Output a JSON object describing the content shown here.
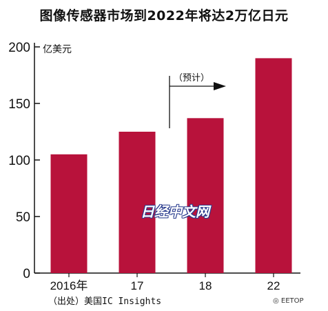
{
  "title": "图像传感器市场到2022年将达2万亿日元",
  "source": "（出处）美国IC Insights",
  "watermark": "日经中文网",
  "wechat_label": "EETOP",
  "colors": {
    "bar": "#b8123b",
    "axis": "#111111",
    "text": "#111111"
  },
  "chart_data": {
    "type": "bar",
    "categories": [
      "2016年",
      "17",
      "18",
      "22"
    ],
    "values": [
      105,
      125,
      137,
      190
    ],
    "ylabel": "亿美元",
    "yticks": [
      0,
      50,
      100,
      150,
      200
    ],
    "ylim": [
      0,
      200
    ],
    "annotation": "（预计）",
    "grid": false,
    "legend": "none"
  }
}
